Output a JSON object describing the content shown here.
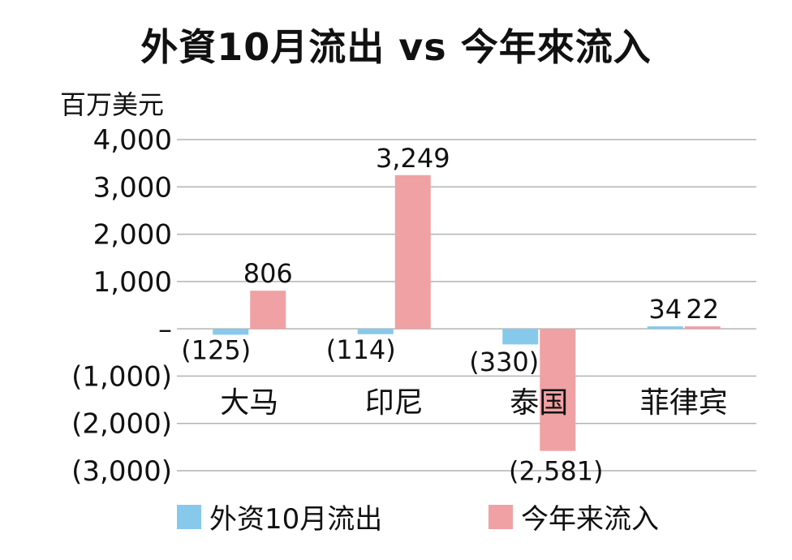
{
  "title": "外資10月流出 vs 今年來流入",
  "unit": "百万美元",
  "colors": {
    "outflow": "#87c9ea",
    "inflow": "#f0a1a4",
    "grid": "#b3b3b3"
  },
  "chart_data": {
    "type": "bar",
    "categories": [
      "大马",
      "印尼",
      "泰国",
      "菲律宾"
    ],
    "series": [
      {
        "name": "外资10月流出",
        "values": [
          -125,
          -114,
          -330,
          34
        ],
        "labels": [
          "(125)",
          "(114)",
          "(330)",
          "34"
        ]
      },
      {
        "name": "今年来流入",
        "values": [
          806,
          3249,
          -2581,
          22
        ],
        "labels": [
          "806",
          "3,249",
          "(2,581)",
          "22"
        ]
      }
    ],
    "ylim": [
      -3000,
      4000
    ],
    "ticks": [
      {
        "value": 4000,
        "label": "4,000"
      },
      {
        "value": 3000,
        "label": "3,000"
      },
      {
        "value": 2000,
        "label": "2,000"
      },
      {
        "value": 1000,
        "label": "1,000"
      },
      {
        "value": 0,
        "label": "–"
      },
      {
        "value": -1000,
        "label": "(1,000)"
      },
      {
        "value": -2000,
        "label": "(2,000)"
      },
      {
        "value": -3000,
        "label": "(3,000)"
      }
    ],
    "grid": true,
    "legend": "bottom"
  }
}
